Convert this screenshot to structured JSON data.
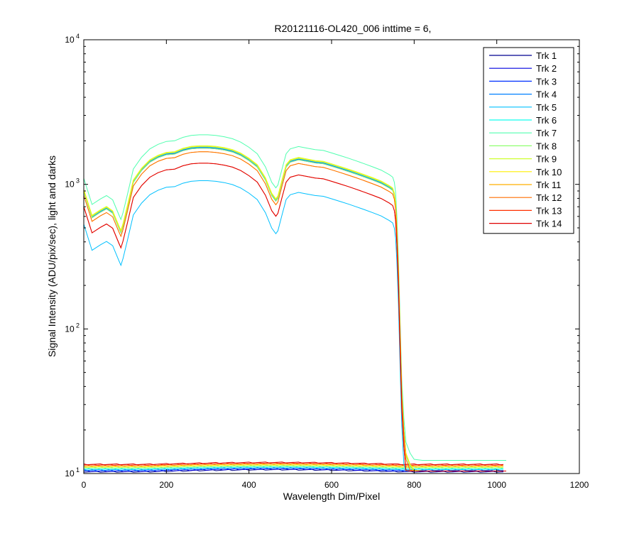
{
  "chart_data": {
    "type": "line",
    "title": "R20121116-OL420_006 inttime = 6,",
    "xlabel": "Wavelength Dim/Pixel",
    "ylabel": "Signal Intensity (ADU/pix/sec), light and darks",
    "xlim": [
      0,
      1200
    ],
    "ylim": [
      10,
      10000
    ],
    "yscale": "log",
    "x_ticks": [
      "0",
      "200",
      "400",
      "600",
      "800",
      "1000",
      "1200"
    ],
    "y_ticks": [
      {
        "base": "10",
        "exp": "1"
      },
      {
        "base": "10",
        "exp": "2"
      },
      {
        "base": "10",
        "exp": "3"
      },
      {
        "base": "10",
        "exp": "4"
      }
    ],
    "grid": false,
    "legend_position": "top-right",
    "series": [
      {
        "name": "Trk 1",
        "color": "#00008f",
        "peak": 1800
      },
      {
        "name": "Trk 2",
        "color": "#0000df",
        "peak": 1800
      },
      {
        "name": "Trk 3",
        "color": "#0030ff",
        "peak": 1780
      },
      {
        "name": "Trk 4",
        "color": "#0080ff",
        "peak": 1800
      },
      {
        "name": "Trk 5",
        "color": "#00c0ff",
        "peak": 1060
      },
      {
        "name": "Trk 6",
        "color": "#10ffef",
        "peak": 1820
      },
      {
        "name": "Trk 7",
        "color": "#50ffaf",
        "peak": 2200
      },
      {
        "name": "Trk 8",
        "color": "#8fff70",
        "peak": 1780
      },
      {
        "name": "Trk 9",
        "color": "#cfff30",
        "peak": 1850
      },
      {
        "name": "Trk 10",
        "color": "#ffef00",
        "peak": 1830
      },
      {
        "name": "Trk 11",
        "color": "#ffaf00",
        "peak": 1680
      },
      {
        "name": "Trk 12",
        "color": "#ff6f00",
        "peak": 1680
      },
      {
        "name": "Trk 13",
        "color": "#ff3000",
        "peak": 1400
      },
      {
        "name": "Trk 14",
        "color": "#df0000",
        "peak": 1400
      }
    ],
    "light_profile": {
      "x": [
        0,
        20,
        40,
        55,
        70,
        85,
        90,
        95,
        105,
        120,
        140,
        160,
        180,
        200,
        220,
        240,
        260,
        280,
        300,
        320,
        340,
        360,
        380,
        400,
        420,
        440,
        455,
        465,
        470,
        480,
        490,
        500,
        520,
        540,
        560,
        580,
        600,
        620,
        640,
        660,
        680,
        700,
        720,
        740,
        748,
        752,
        755,
        758,
        762,
        766,
        770,
        775,
        780,
        790,
        800,
        820,
        850,
        880,
        900,
        950,
        1000,
        1023
      ],
      "y": [
        0.5,
        0.33,
        0.36,
        0.38,
        0.355,
        0.28,
        0.26,
        0.29,
        0.38,
        0.58,
        0.7,
        0.8,
        0.86,
        0.9,
        0.91,
        0.96,
        0.99,
        1.0,
        1.0,
        0.99,
        0.97,
        0.94,
        0.89,
        0.82,
        0.74,
        0.6,
        0.47,
        0.43,
        0.45,
        0.58,
        0.74,
        0.8,
        0.83,
        0.81,
        0.79,
        0.78,
        0.75,
        0.72,
        0.69,
        0.66,
        0.63,
        0.6,
        0.57,
        0.53,
        0.51,
        0.47,
        0.4,
        0.28,
        0.14,
        0.05,
        0.02,
        0.011,
        0.0075,
        0.0063,
        0.0057,
        0.0056,
        0.0056,
        0.0056,
        0.0056,
        0.0056,
        0.0056,
        0.0056
      ]
    },
    "dark_levels": [
      10.2,
      10.3,
      10.4,
      10.5,
      10.6,
      10.7,
      10.8,
      10.9,
      11.0,
      11.1,
      11.2,
      11.3,
      11.4,
      11.5
    ]
  }
}
